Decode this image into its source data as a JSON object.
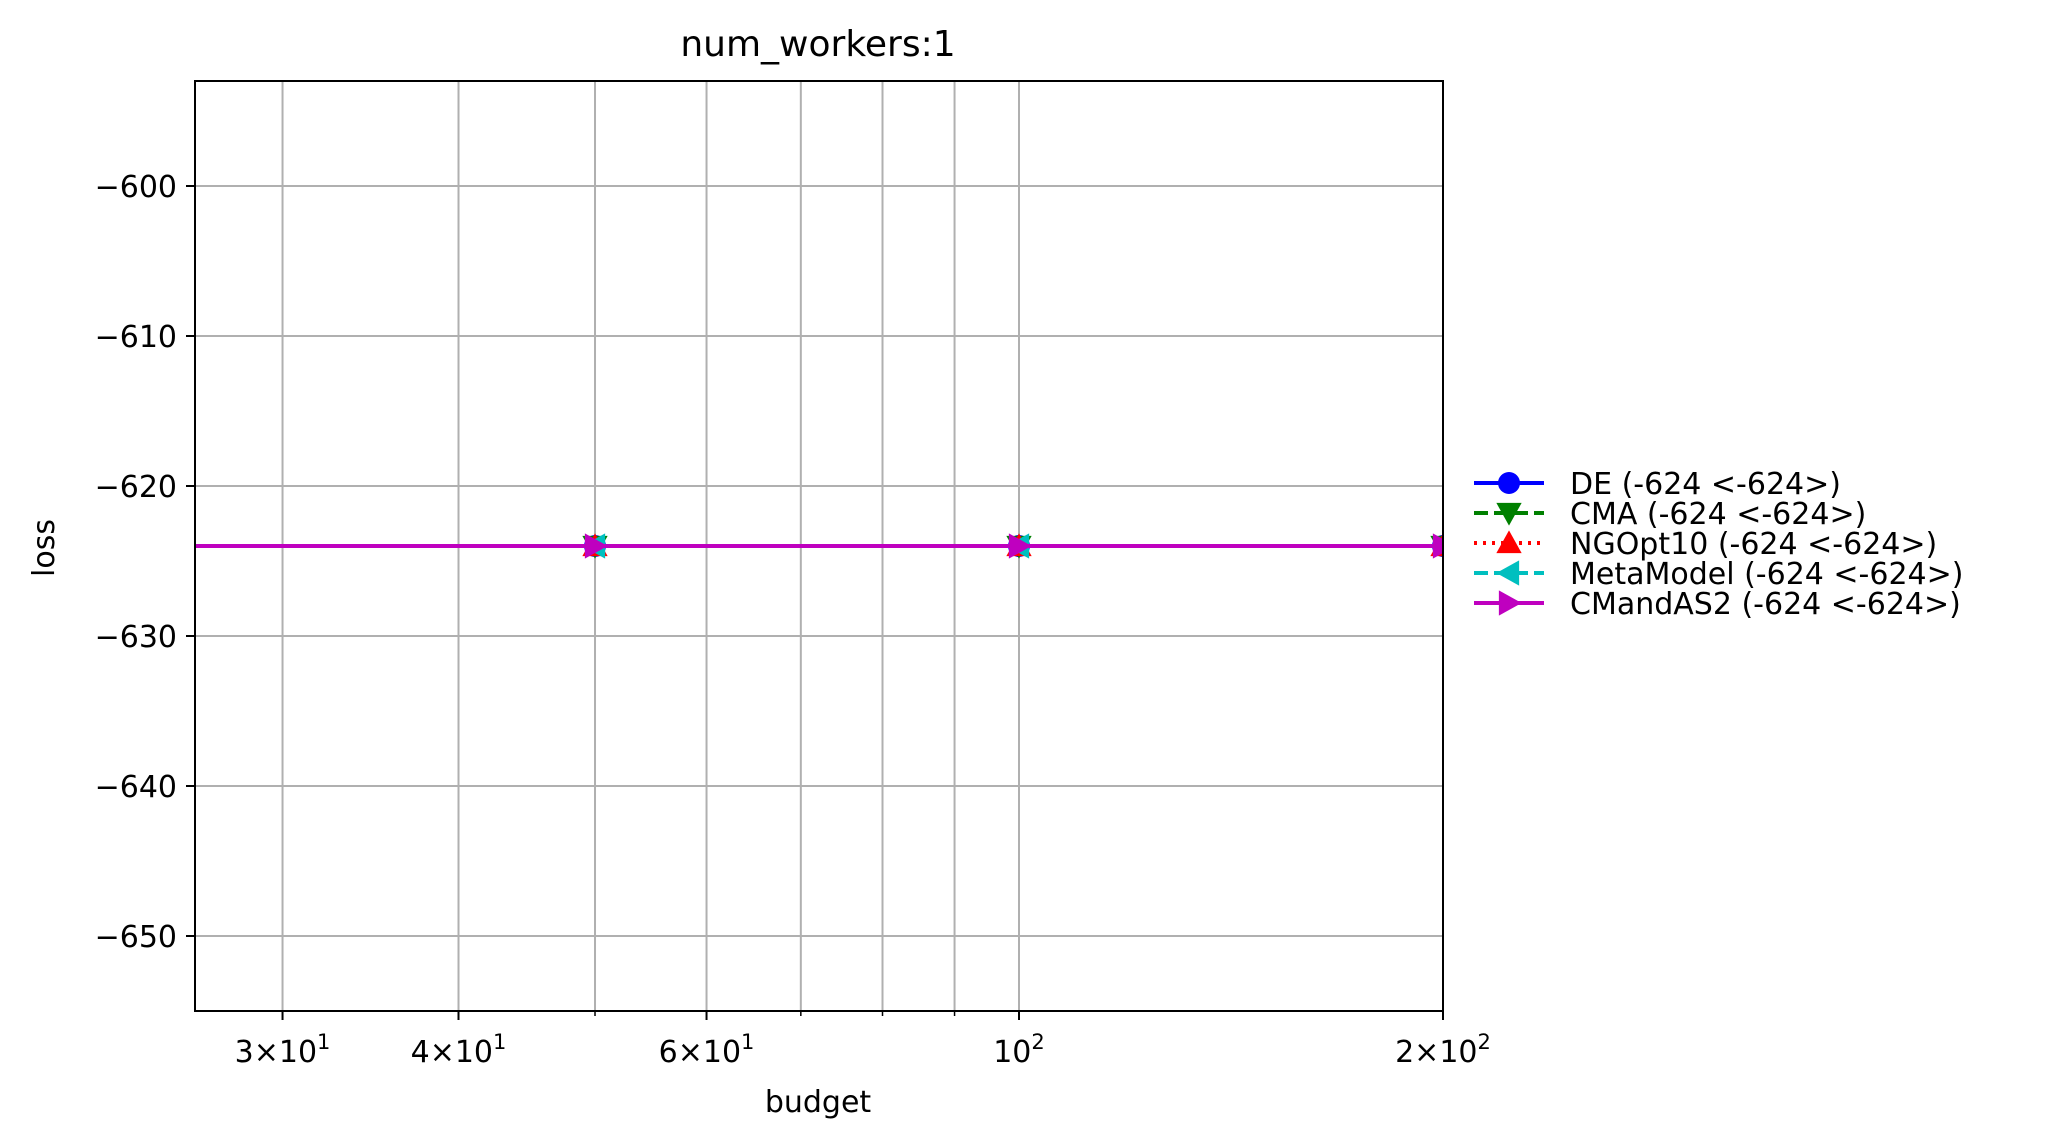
{
  "chart_data": {
    "type": "line",
    "title": "num_workers:1",
    "xlabel": "budget",
    "ylabel": "loss",
    "xscale": "log",
    "xlim": [
      26,
      200
    ],
    "ylim": [
      -655,
      -593
    ],
    "grid": true,
    "legend_position": "outside-right",
    "x": [
      25,
      50,
      100,
      200
    ],
    "xticks": [
      {
        "value": 30,
        "mantissa": "3",
        "exponent": "1"
      },
      {
        "value": 40,
        "mantissa": "4",
        "exponent": "1"
      },
      {
        "value": 60,
        "mantissa": "6",
        "exponent": "1"
      },
      {
        "value": 100,
        "mantissa": "",
        "exponent": "2"
      },
      {
        "value": 200,
        "mantissa": "2",
        "exponent": "2"
      }
    ],
    "minor_grid_x": [
      50,
      70,
      80,
      90
    ],
    "yticks": [
      {
        "value": -600,
        "label": "−600"
      },
      {
        "value": -610,
        "label": "−610"
      },
      {
        "value": -620,
        "label": "−620"
      },
      {
        "value": -630,
        "label": "−630"
      },
      {
        "value": -640,
        "label": "−640"
      },
      {
        "value": -650,
        "label": "−650"
      }
    ],
    "series": [
      {
        "name": "DE (-624 <-624>)",
        "values": [
          -624,
          -624,
          -624,
          -624
        ],
        "color": "#0000ff",
        "marker": "circle",
        "dash": "solid"
      },
      {
        "name": "CMA (-624 <-624>)",
        "values": [
          -624,
          -624,
          -624,
          -624
        ],
        "color": "#008000",
        "marker": "triangle-down",
        "dash": "dashed"
      },
      {
        "name": "NGOpt10 (-624 <-624>)",
        "values": [
          -624,
          -624,
          -624,
          -624
        ],
        "color": "#ff0000",
        "marker": "triangle-up",
        "dash": "dotted"
      },
      {
        "name": "MetaModel (-624 <-624>)",
        "values": [
          -624,
          -624,
          -624,
          -624
        ],
        "color": "#00bfbf",
        "marker": "triangle-left",
        "dash": "dashed"
      },
      {
        "name": "CMandAS2 (-624 <-624>)",
        "values": [
          -624,
          -624,
          -624,
          -624
        ],
        "color": "#bf00bf",
        "marker": "triangle-right",
        "dash": "solid"
      }
    ]
  }
}
